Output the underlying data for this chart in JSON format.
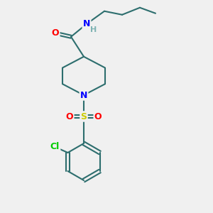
{
  "background_color": "#f0f0f0",
  "bond_color": "#2d6e6e",
  "atom_colors": {
    "O": "#ff0000",
    "N": "#0000ff",
    "S": "#cccc00",
    "Cl": "#00cc00",
    "H": "#7fb3b3",
    "C": "#2d6e6e"
  },
  "figsize": [
    3.0,
    3.0
  ],
  "dpi": 100
}
